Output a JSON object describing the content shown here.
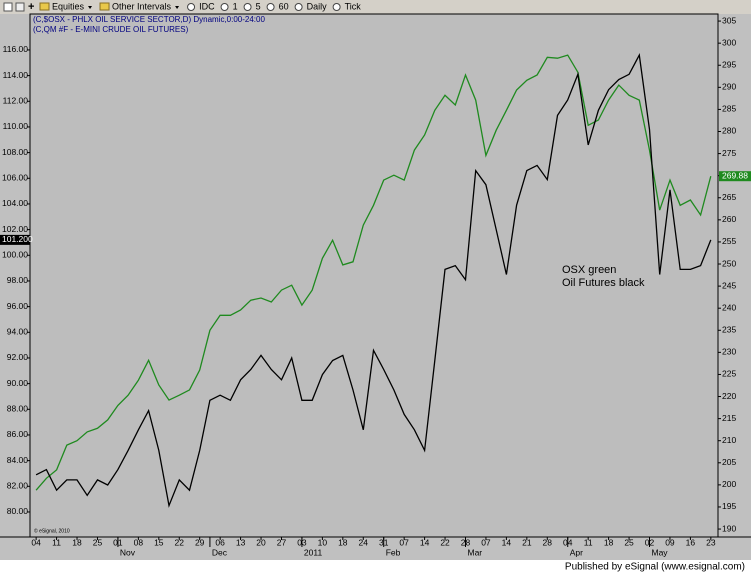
{
  "toolbar": {
    "items": [
      "Equities",
      "Other Intervals",
      "IDC",
      "1",
      "5",
      "60",
      "Daily",
      "Tick"
    ]
  },
  "chart_data": {
    "type": "line",
    "annotations": [
      "OSX green",
      "Oil Futures black"
    ],
    "watermark": "© eSignal, 2010",
    "xlim": [
      -0.6,
      66.7
    ],
    "xticks": [
      {
        "value": 0,
        "label": "04"
      },
      {
        "value": 2,
        "label": "11"
      },
      {
        "value": 4,
        "label": "18"
      },
      {
        "value": 6,
        "label": "25"
      },
      {
        "value": 8,
        "label": "01"
      },
      {
        "value": 10,
        "label": "08"
      },
      {
        "value": 12,
        "label": "15"
      },
      {
        "value": 14,
        "label": "22"
      },
      {
        "value": 16,
        "label": "29"
      },
      {
        "value": 18,
        "label": "06"
      },
      {
        "value": 20,
        "label": "13"
      },
      {
        "value": 22,
        "label": "20"
      },
      {
        "value": 24,
        "label": "27"
      },
      {
        "value": 26,
        "label": "03"
      },
      {
        "value": 28,
        "label": "10"
      },
      {
        "value": 30,
        "label": "18"
      },
      {
        "value": 32,
        "label": "24"
      },
      {
        "value": 34,
        "label": "31"
      },
      {
        "value": 36,
        "label": "07"
      },
      {
        "value": 38,
        "label": "14"
      },
      {
        "value": 40,
        "label": "22"
      },
      {
        "value": 42,
        "label": "28"
      },
      {
        "value": 44,
        "label": "07"
      },
      {
        "value": 46,
        "label": "14"
      },
      {
        "value": 48,
        "label": "21"
      },
      {
        "value": 50,
        "label": "28"
      },
      {
        "value": 52,
        "label": "04"
      },
      {
        "value": 54,
        "label": "11"
      },
      {
        "value": 56,
        "label": "18"
      },
      {
        "value": 58,
        "label": "25"
      },
      {
        "value": 60,
        "label": "02"
      },
      {
        "value": 62,
        "label": "09"
      },
      {
        "value": 64,
        "label": "16"
      },
      {
        "value": 66,
        "label": "23"
      }
    ],
    "x_month_ticks": [
      {
        "value": 8,
        "label": "Nov"
      },
      {
        "value": 17,
        "label": "Dec"
      },
      {
        "value": 26,
        "label": "2011"
      },
      {
        "value": 34,
        "label": "Feb"
      },
      {
        "value": 42,
        "label": "Mar"
      },
      {
        "value": 52,
        "label": "Apr"
      },
      {
        "value": 60,
        "label": "May"
      }
    ],
    "ylim": [
      78.05,
      118.8
    ],
    "yticks": [
      {
        "value": 80,
        "label": "80.00"
      },
      {
        "value": 82,
        "label": "82.00"
      },
      {
        "value": 84,
        "label": "84.00"
      },
      {
        "value": 86,
        "label": "86.00"
      },
      {
        "value": 88,
        "label": "88.00"
      },
      {
        "value": 90,
        "label": "90.00"
      },
      {
        "value": 92,
        "label": "92.00"
      },
      {
        "value": 94,
        "label": "94.00"
      },
      {
        "value": 96,
        "label": "96.00"
      },
      {
        "value": 98,
        "label": "98.00"
      },
      {
        "value": 100,
        "label": "100.00"
      },
      {
        "value": 102,
        "label": "102.00"
      },
      {
        "value": 104,
        "label": "104.00"
      },
      {
        "value": 106,
        "label": "106.00"
      },
      {
        "value": 108,
        "label": "108.00"
      },
      {
        "value": 110,
        "label": "110.00"
      },
      {
        "value": 112,
        "label": "112.00"
      },
      {
        "value": 114,
        "label": "114.00"
      },
      {
        "value": 116,
        "label": "116.00"
      }
    ],
    "y2lim": [
      188.2,
      306.6
    ],
    "y2ticks": [
      190,
      195,
      200,
      205,
      210,
      215,
      220,
      225,
      230,
      235,
      240,
      245,
      250,
      255,
      260,
      265,
      270,
      275,
      280,
      285,
      290,
      295,
      300,
      305
    ],
    "series": [
      {
        "name": "(C,$OSX - PHLX OIL SERVICE SECTOR,D) Dynamic,0:00-24:00",
        "color": "#1f8a1f",
        "axis": "y2",
        "last_label": "269.88",
        "values": [
          198.8,
          201.5,
          203.4,
          209,
          210,
          212,
          212.8,
          214.7,
          218,
          220.3,
          223.7,
          228.2,
          222.6,
          219.2,
          220.3,
          221.5,
          226,
          235,
          238.4,
          238.4,
          239.6,
          241.8,
          242.3,
          241.4,
          244.1,
          245.2,
          240.7,
          244.1,
          251.3,
          255.4,
          249.8,
          250.5,
          258.8,
          263.3,
          269,
          270.1,
          269,
          275.8,
          279.2,
          284.8,
          288.2,
          286,
          292.8,
          287.1,
          274.6,
          280.3,
          284.8,
          289.4,
          291.6,
          292.8,
          296.8,
          296.6,
          297.3,
          293.4,
          281.4,
          282.6,
          287.1,
          290.5,
          288.2,
          287.1,
          275.8,
          262.2,
          269,
          263.3,
          264.5,
          261.1,
          269.88
        ]
      },
      {
        "name": "(C,QM #F - E-MINI CRUDE OIL FUTURES)",
        "color": "#000000",
        "last_label": "101.200",
        "values": [
          82.9,
          83.3,
          81.7,
          82.5,
          82.5,
          81.3,
          82.5,
          82.1,
          83.3,
          84.8,
          86.4,
          87.9,
          84.8,
          80.5,
          82.5,
          81.7,
          84.8,
          88.7,
          89.1,
          88.7,
          90.3,
          91.1,
          92.2,
          91.1,
          90.3,
          92.0,
          88.7,
          88.7,
          90.7,
          91.8,
          92.2,
          89.5,
          86.4,
          92.6,
          91.1,
          89.5,
          87.6,
          86.4,
          84.8,
          91.8,
          98.9,
          99.2,
          98.1,
          106.6,
          105.5,
          102.0,
          98.5,
          103.9,
          106.6,
          107.0,
          105.9,
          110.9,
          112.1,
          114.1,
          108.6,
          111.3,
          112.9,
          113.7,
          114.1,
          115.6,
          109.8,
          98.5,
          105.1,
          98.9,
          98.9,
          99.2,
          101.2
        ]
      }
    ]
  },
  "footer": "Published by eSignal (www.esignal.com)"
}
